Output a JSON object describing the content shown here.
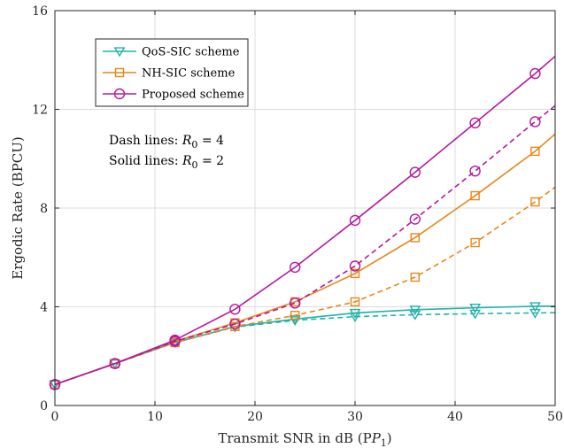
{
  "chart_data": {
    "type": "line",
    "xlabel": "Transmit SNR in dB (P",
    "xlabel_sub": "1",
    "xlabel_close": ")",
    "ylabel": "Ergodic Rate (BPCU)",
    "xlim": [
      0,
      50
    ],
    "ylim": [
      0,
      16
    ],
    "xticks": [
      0,
      10,
      20,
      30,
      40,
      50
    ],
    "yticks": [
      0,
      4,
      8,
      12,
      16
    ],
    "grid": true,
    "legend_position": "top-left",
    "annotations": [
      {
        "prefix": "Dash lines: ",
        "var": "R",
        "sub": "0",
        "suffix": " = 4"
      },
      {
        "prefix": "Solid lines: ",
        "var": "R",
        "sub": "0",
        "suffix": " = 2"
      }
    ],
    "marker_x": [
      0,
      6,
      12,
      18,
      24,
      30,
      36,
      42,
      48
    ],
    "series": [
      {
        "name": "QoS-SIC scheme",
        "color": "#20b2aa",
        "marker": "triangle-down",
        "solid": {
          "x": [
            0,
            6,
            12,
            18,
            24,
            30,
            36,
            42,
            48,
            50
          ],
          "y": [
            0.85,
            1.7,
            2.55,
            3.2,
            3.5,
            3.75,
            3.88,
            3.96,
            4.02,
            4.03
          ]
        },
        "dash": {
          "x": [
            0,
            6,
            12,
            18,
            24,
            30,
            36,
            42,
            48,
            50
          ],
          "y": [
            0.85,
            1.7,
            2.55,
            3.18,
            3.45,
            3.6,
            3.68,
            3.72,
            3.75,
            3.76
          ]
        }
      },
      {
        "name": "NH-SIC scheme",
        "color": "#e8861a",
        "marker": "square",
        "solid": {
          "x": [
            0,
            6,
            12,
            18,
            24,
            30,
            36,
            42,
            48,
            50
          ],
          "y": [
            0.85,
            1.7,
            2.6,
            3.35,
            4.2,
            5.35,
            6.8,
            8.5,
            10.3,
            11.0
          ]
        },
        "dash": {
          "x": [
            0,
            6,
            12,
            18,
            24,
            30,
            36,
            42,
            48,
            50
          ],
          "y": [
            0.85,
            1.7,
            2.55,
            3.2,
            3.65,
            4.2,
            5.2,
            6.6,
            8.25,
            8.85
          ]
        }
      },
      {
        "name": "Proposed scheme",
        "color": "#b5179e",
        "marker": "circle",
        "solid": {
          "x": [
            0,
            6,
            12,
            18,
            24,
            30,
            36,
            42,
            48,
            50
          ],
          "y": [
            0.85,
            1.7,
            2.65,
            3.9,
            5.6,
            7.5,
            9.45,
            11.45,
            13.45,
            14.15
          ]
        },
        "dash": {
          "x": [
            0,
            6,
            12,
            18,
            24,
            30,
            36,
            42,
            48,
            50
          ],
          "y": [
            0.85,
            1.7,
            2.6,
            3.3,
            4.15,
            5.65,
            7.55,
            9.5,
            11.5,
            12.15
          ]
        }
      }
    ]
  }
}
